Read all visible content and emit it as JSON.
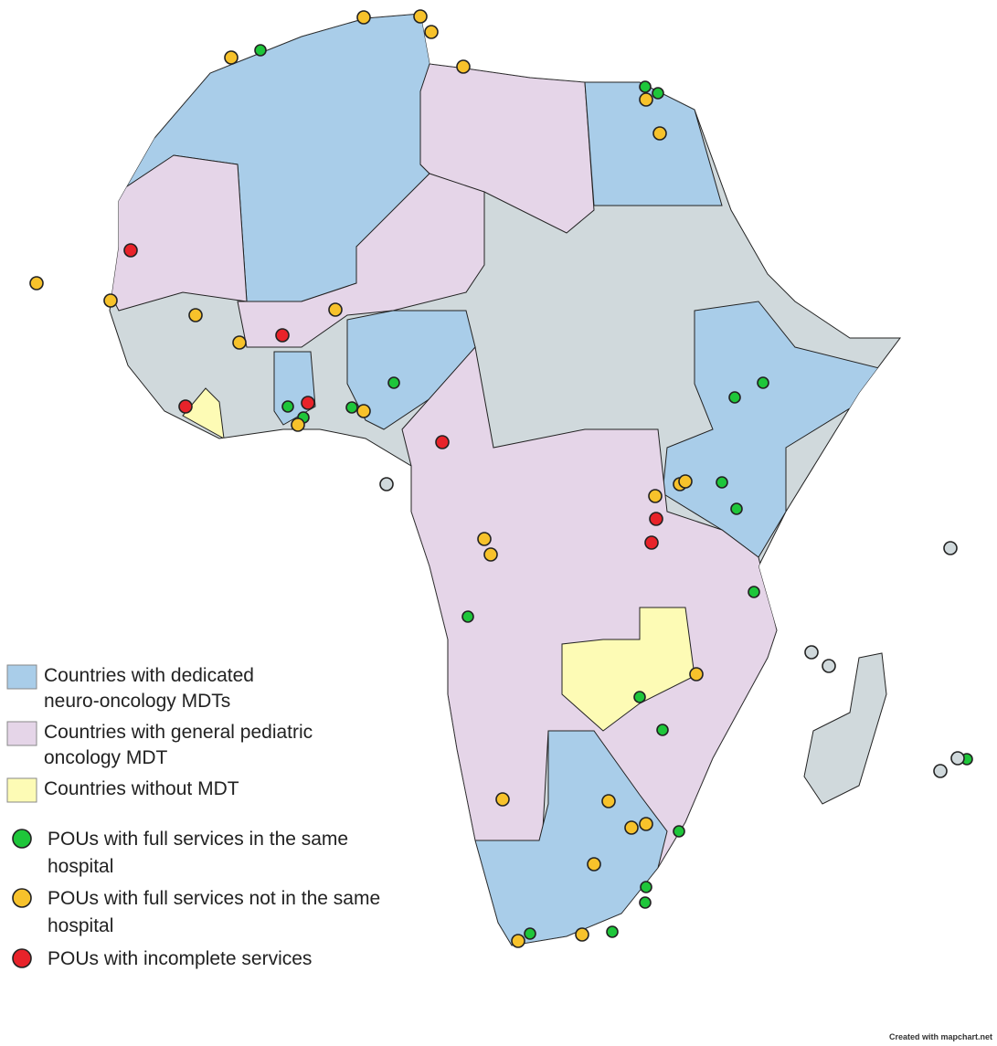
{
  "legend": {
    "items": [
      "Countries with dedicated neuro-oncology MDTs",
      "Countries with general pediatric oncology MDT",
      "Countries without MDT",
      "POUs with full services in the same hospital",
      "POUs with full services not in the same hospital",
      "POUs with incomplete services"
    ]
  },
  "credit": "Created with mapchart.net"
}
